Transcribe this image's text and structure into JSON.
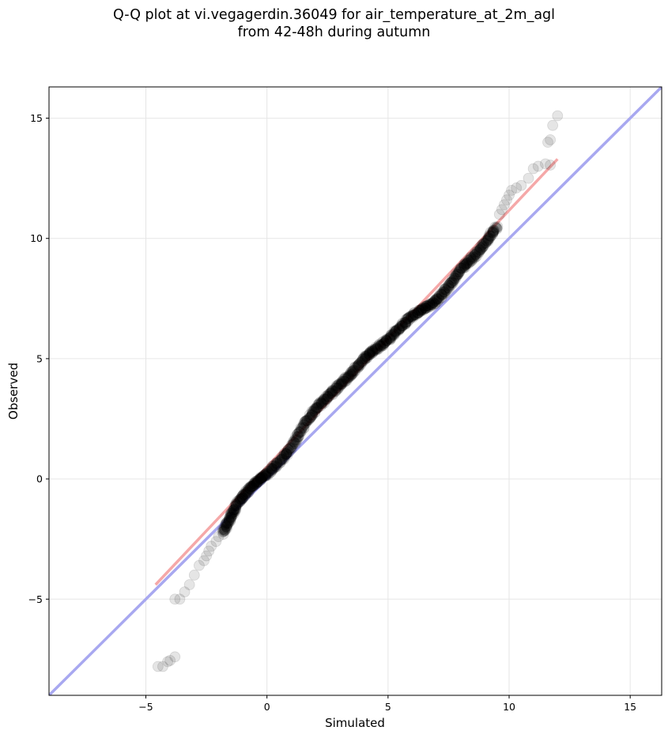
{
  "chart_data": {
    "type": "scatter",
    "title_line1": "Q-Q plot at vi.vegagerdin.36049 for air_temperature_at_2m_agl",
    "title_line2": "from 42-48h during autumn",
    "xlabel": "Simulated",
    "ylabel": "Observed",
    "xlim": [
      -9,
      16.3
    ],
    "ylim": [
      -9,
      16.3
    ],
    "xticks": [
      -5,
      0,
      5,
      10,
      15
    ],
    "yticks": [
      -5,
      0,
      5,
      10,
      15
    ],
    "xtick_labels": [
      "−5",
      "0",
      "5",
      "10",
      "15"
    ],
    "ytick_labels": [
      "−5",
      "0",
      "5",
      "10",
      "15"
    ],
    "grid": true,
    "reference_line": {
      "kind": "identity",
      "color": "#a8a8f0"
    },
    "fit_line": {
      "x": [
        -4.6,
        12
      ],
      "y": [
        -4.4,
        13.3
      ],
      "color": "#f5a8a8"
    },
    "tail_points": [
      [
        -4.5,
        -7.8
      ],
      [
        -4.3,
        -7.8
      ],
      [
        -4.1,
        -7.6
      ],
      [
        -4.0,
        -7.55
      ],
      [
        -3.8,
        -7.4
      ],
      [
        -3.8,
        -5.0
      ],
      [
        -3.6,
        -5.0
      ],
      [
        -3.4,
        -4.7
      ],
      [
        -3.2,
        -4.4
      ],
      [
        -3.0,
        -4.0
      ],
      [
        -2.8,
        -3.6
      ],
      [
        -2.6,
        -3.4
      ],
      [
        -2.5,
        -3.2
      ],
      [
        -2.4,
        -3.0
      ],
      [
        -2.3,
        -2.8
      ],
      [
        -2.1,
        -2.6
      ],
      [
        -2.0,
        -2.4
      ],
      [
        -1.8,
        -2.3
      ],
      [
        9.6,
        11.0
      ],
      [
        9.7,
        11.2
      ],
      [
        9.8,
        11.4
      ],
      [
        9.9,
        11.6
      ],
      [
        10.0,
        11.8
      ],
      [
        10.1,
        12.0
      ],
      [
        10.3,
        12.1
      ],
      [
        10.5,
        12.2
      ],
      [
        10.8,
        12.5
      ],
      [
        11.0,
        12.9
      ],
      [
        11.2,
        13.0
      ],
      [
        11.5,
        13.1
      ],
      [
        11.7,
        13.05
      ],
      [
        11.6,
        14.0
      ],
      [
        11.7,
        14.1
      ],
      [
        11.8,
        14.7
      ],
      [
        12.0,
        15.1
      ]
    ],
    "body_path": [
      [
        -1.8,
        -2.2
      ],
      [
        -1.5,
        -1.6
      ],
      [
        -1.2,
        -1.0
      ],
      [
        -0.8,
        -0.5
      ],
      [
        -0.4,
        -0.1
      ],
      [
        0.0,
        0.2
      ],
      [
        0.5,
        0.7
      ],
      [
        1.0,
        1.3
      ],
      [
        1.5,
        2.2
      ],
      [
        2.0,
        2.9
      ],
      [
        2.5,
        3.4
      ],
      [
        3.0,
        3.9
      ],
      [
        3.5,
        4.4
      ],
      [
        4.0,
        5.0
      ],
      [
        4.5,
        5.4
      ],
      [
        5.0,
        5.8
      ],
      [
        5.5,
        6.3
      ],
      [
        6.0,
        6.8
      ],
      [
        6.5,
        7.1
      ],
      [
        7.0,
        7.4
      ],
      [
        7.5,
        8.0
      ],
      [
        8.0,
        8.7
      ],
      [
        8.5,
        9.2
      ],
      [
        9.0,
        9.8
      ],
      [
        9.5,
        10.5
      ]
    ]
  }
}
